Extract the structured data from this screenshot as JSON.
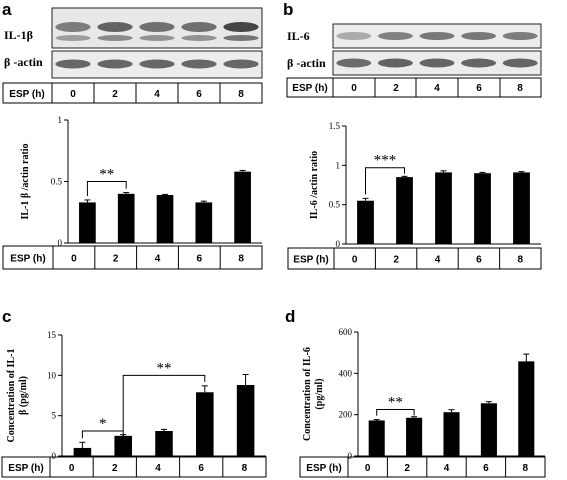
{
  "panels": [
    {
      "letter": "a",
      "blot": {
        "rows": [
          "IL-1β",
          "β -actin"
        ],
        "row1_intensity": [
          0.62,
          0.78,
          0.7,
          0.7,
          0.95
        ],
        "row2_intensity": [
          0.75,
          0.75,
          0.75,
          0.75,
          0.75
        ]
      },
      "blot_esp": {
        "label": "ESP (h)",
        "values": [
          "0",
          "2",
          "4",
          "6",
          "8"
        ]
      }
    },
    {
      "letter": "b",
      "blot": {
        "rows": [
          "IL-6",
          "β -actin"
        ],
        "row1_intensity": [
          0.35,
          0.6,
          0.65,
          0.65,
          0.62
        ],
        "row2_intensity": [
          0.72,
          0.78,
          0.76,
          0.76,
          0.76
        ]
      },
      "blot_esp": {
        "label": "ESP (h)",
        "values": [
          "0",
          "2",
          "4",
          "6",
          "8"
        ]
      }
    },
    {
      "letter": "c"
    },
    {
      "letter": "d"
    }
  ],
  "chart_data": [
    {
      "type": "bar",
      "panel": "a",
      "categories": [
        "0",
        "2",
        "4",
        "6",
        "8"
      ],
      "values": [
        0.33,
        0.4,
        0.39,
        0.33,
        0.58
      ],
      "errors": [
        0.02,
        0.01,
        0.005,
        0.01,
        0.01
      ],
      "ylabel": "IL-1 β /actin  ratio",
      "ylim": [
        0,
        1
      ],
      "yticks": [
        "0",
        "0.5",
        "1"
      ],
      "ytick_values": [
        0,
        0.5,
        1
      ],
      "xlabel": "ESP (h)",
      "bar_color": "#000000",
      "significance": [
        {
          "from": 0,
          "to": 1,
          "label": "**",
          "level": 0.5
        }
      ]
    },
    {
      "type": "bar",
      "panel": "b",
      "categories": [
        "0",
        "2",
        "4",
        "6",
        "8"
      ],
      "values": [
        0.55,
        0.85,
        0.91,
        0.9,
        0.91
      ],
      "errors": [
        0.03,
        0.01,
        0.02,
        0.01,
        0.01
      ],
      "ylabel": "IL-6 /actin  ratio",
      "ylim": [
        0,
        1.5
      ],
      "yticks": [
        "0",
        "0.5",
        "1",
        "1.5"
      ],
      "ytick_values": [
        0,
        0.5,
        1,
        1.5
      ],
      "xlabel": "ESP (h)",
      "bar_color": "#000000",
      "significance": [
        {
          "from": 0,
          "to": 1,
          "label": "***",
          "level": 0.97
        }
      ]
    },
    {
      "type": "bar",
      "panel": "c",
      "categories": [
        "0",
        "2",
        "4",
        "6",
        "8"
      ],
      "values": [
        1.0,
        2.5,
        3.1,
        7.9,
        8.8
      ],
      "errors": [
        0.7,
        0.15,
        0.2,
        0.8,
        1.3
      ],
      "ylabel_lines": [
        "Concentration of IL-1",
        "β (pg/ml)"
      ],
      "ylim": [
        0,
        15
      ],
      "yticks": [
        "0",
        "5",
        "10",
        "15"
      ],
      "ytick_values": [
        0,
        5,
        10,
        15
      ],
      "xlabel": "ESP (h)",
      "bar_color": "#000000",
      "significance": [
        {
          "from": 0,
          "to": 1,
          "label": "*",
          "level": 3.1
        },
        {
          "from": 1,
          "to": 3,
          "label": "**",
          "level": 10.0
        }
      ]
    },
    {
      "type": "bar",
      "panel": "d",
      "categories": [
        "0",
        "2",
        "4",
        "6",
        "8"
      ],
      "values": [
        172,
        185,
        212,
        255,
        458
      ],
      "errors": [
        4,
        5,
        12,
        8,
        35
      ],
      "ylabel_lines": [
        "Concentration of IL-6",
        "(pg/ml)"
      ],
      "ylim": [
        0,
        600
      ],
      "yticks": [
        "0",
        "200",
        "400",
        "600"
      ],
      "ytick_values": [
        0,
        200,
        400,
        600
      ],
      "xlabel": "ESP (h)",
      "bar_color": "#000000",
      "significance": [
        {
          "from": 0,
          "to": 1,
          "label": "**",
          "level": 225
        }
      ]
    }
  ]
}
